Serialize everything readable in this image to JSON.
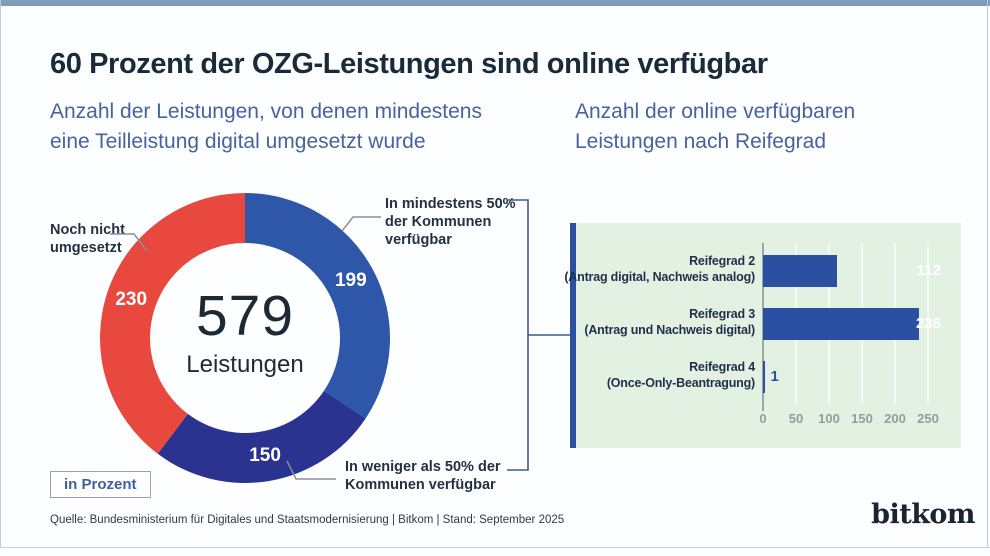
{
  "header": {
    "title": "60 Prozent der OZG-Leistungen sind online verfügbar",
    "subtitle_left": [
      "Anzahl der Leistungen, von denen mindestens",
      "eine Teilleistung digital umgesetzt wurde"
    ],
    "subtitle_right": [
      "Anzahl der online verfügbaren",
      "Leistungen nach Reifegrad"
    ]
  },
  "donut": {
    "total": "579",
    "total_label": "Leistungen",
    "unit_box_label": "in Prozent"
  },
  "callouts": {
    "not_implemented": [
      "Noch nicht",
      "umgesetzt"
    ],
    "min50": [
      "In mindestens 50%",
      "der Kommunen",
      "verfügbar"
    ],
    "less50": [
      "In weniger als 50% der",
      "Kommunen verfügbar"
    ]
  },
  "bars": {
    "rows": [
      {
        "line1": "Reifegrad 2",
        "line2": "(Antrag digital, Nachweis analog)"
      },
      {
        "line1": "Reifegrad 3",
        "line2": "(Antrag und Nachweis digital)"
      },
      {
        "line1": "Reifegrad 4",
        "line2": "(Once-Only-Beantragung)"
      }
    ]
  },
  "footer": {
    "source": "Quelle: Bundesministerium für Digitales und Staatsmodernisierung | Bitkom | Stand: September 2025",
    "logo": "bitkom"
  },
  "colors": {
    "blue": "#2e57a9",
    "dark_blue": "#2b3390",
    "red": "#e8483e",
    "panel_green": "#e3f1e3",
    "subtitle_blue": "#47639f"
  },
  "chart_data": [
    {
      "type": "pie",
      "title": "Anzahl der Leistungen, von denen mindestens eine Teilleistung digital umgesetzt wurde",
      "center_total": 579,
      "center_label": "Leistungen",
      "unit_note": "in Prozent",
      "segments": [
        {
          "label": "In mindestens 50% der Kommunen verfügbar",
          "value": 199,
          "color": "#2e57a9"
        },
        {
          "label": "In weniger als 50% der Kommunen verfügbar",
          "value": 150,
          "color": "#2b3390"
        },
        {
          "label": "Noch nicht umgesetzt",
          "value": 230,
          "color": "#e8483e"
        }
      ]
    },
    {
      "type": "bar",
      "orientation": "horizontal",
      "title": "Anzahl der online verfügbaren Leistungen nach Reifegrad",
      "categories": [
        "Reifegrad 2 (Antrag digital, Nachweis analog)",
        "Reifegrad 3 (Antrag und Nachweis digital)",
        "Reifegrad 4 (Once-Only-Beantragung)"
      ],
      "values": [
        112,
        236,
        1
      ],
      "xlim": [
        0,
        250
      ],
      "xticks": [
        0,
        50,
        100,
        150,
        200,
        250
      ],
      "bar_color": "#2b50a2",
      "panel_bg": "#e3f1e3",
      "grid": true
    }
  ]
}
